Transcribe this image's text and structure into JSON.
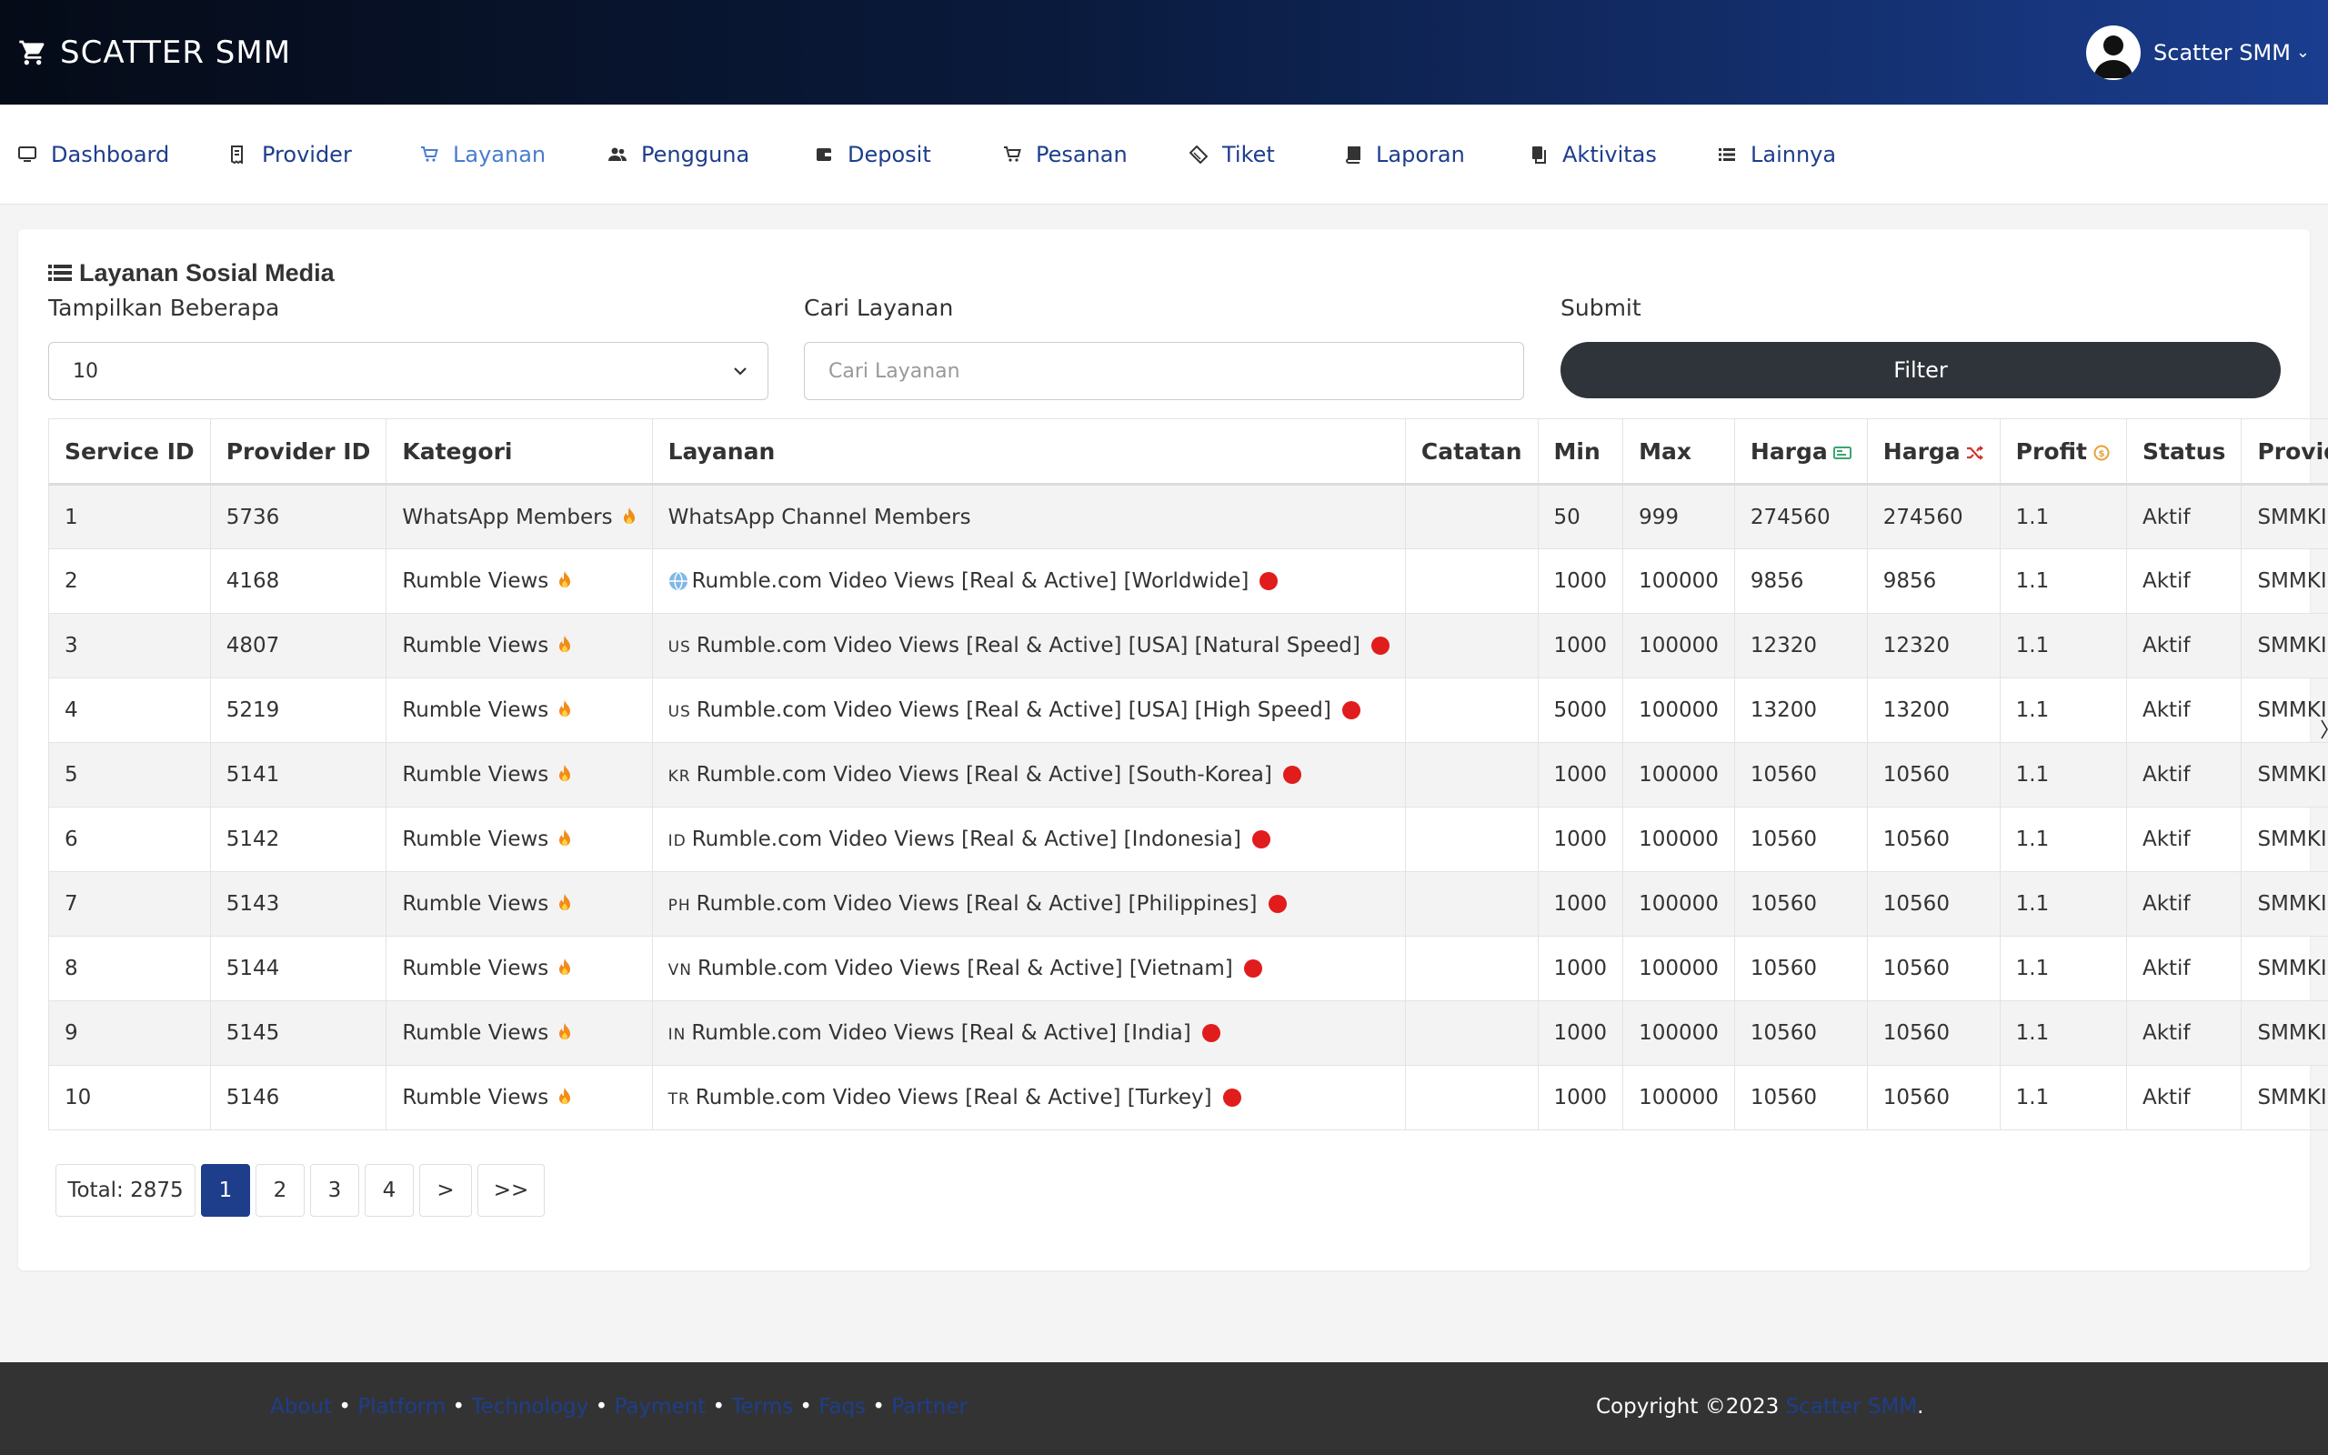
{
  "header": {
    "brand": "SCATTER SMM",
    "user_name": "Scatter SMM",
    "gradient_colors": [
      "#050b17",
      "#1a3d8f"
    ]
  },
  "nav": {
    "items": [
      {
        "label": "Dashboard",
        "icon": "monitor-icon"
      },
      {
        "label": "Provider",
        "icon": "receipt-icon"
      },
      {
        "label": "Layanan",
        "icon": "cart-icon",
        "active": true
      },
      {
        "label": "Pengguna",
        "icon": "users-icon"
      },
      {
        "label": "Deposit",
        "icon": "wallet-icon"
      },
      {
        "label": "Pesanan",
        "icon": "cart-icon"
      },
      {
        "label": "Tiket",
        "icon": "ticket-icon"
      },
      {
        "label": "Laporan",
        "icon": "book-icon"
      },
      {
        "label": "Aktivitas",
        "icon": "copy-icon"
      },
      {
        "label": "Lainnya",
        "icon": "list-icon"
      }
    ]
  },
  "card": {
    "title": "Layanan Sosial Media",
    "show_label": "Tampilkan Beberapa",
    "show_value": "10",
    "search_label": "Cari Layanan",
    "search_placeholder": "Cari Layanan",
    "submit_label": "Submit",
    "filter_button": "Filter"
  },
  "table": {
    "headers": [
      "Service ID",
      "Provider ID",
      "Kategori",
      "Layanan",
      "Catatan",
      "Min",
      "Max",
      "Harga",
      "Harga",
      "Profit",
      "Status",
      "Provider"
    ],
    "rows": [
      {
        "id": "1",
        "provider_id": "5736",
        "kategori": "WhatsApp Members",
        "flag": "",
        "layanan": "WhatsApp Channel Members",
        "dot": false,
        "catatan": "",
        "min": "50",
        "max": "999",
        "harga1": "274560",
        "harga2": "274560",
        "profit": "1.1",
        "status": "Aktif",
        "provider": "SMMKINGS"
      },
      {
        "id": "2",
        "provider_id": "4168",
        "kategori": "Rumble Views",
        "flag": "globe",
        "layanan": "Rumble.com Video Views [Real & Active] [Worldwide]",
        "dot": true,
        "catatan": "",
        "min": "1000",
        "max": "100000",
        "harga1": "9856",
        "harga2": "9856",
        "profit": "1.1",
        "status": "Aktif",
        "provider": "SMMKINGS"
      },
      {
        "id": "3",
        "provider_id": "4807",
        "kategori": "Rumble Views",
        "flag": "US",
        "layanan": "Rumble.com Video Views [Real & Active] [USA] [Natural Speed]",
        "dot": true,
        "catatan": "",
        "min": "1000",
        "max": "100000",
        "harga1": "12320",
        "harga2": "12320",
        "profit": "1.1",
        "status": "Aktif",
        "provider": "SMMKINGS"
      },
      {
        "id": "4",
        "provider_id": "5219",
        "kategori": "Rumble Views",
        "flag": "US",
        "layanan": "Rumble.com Video Views [Real & Active] [USA] [High Speed]",
        "dot": true,
        "catatan": "",
        "min": "5000",
        "max": "100000",
        "harga1": "13200",
        "harga2": "13200",
        "profit": "1.1",
        "status": "Aktif",
        "provider": "SMMKINGS"
      },
      {
        "id": "5",
        "provider_id": "5141",
        "kategori": "Rumble Views",
        "flag": "KR",
        "layanan": "Rumble.com Video Views [Real & Active] [South-Korea]",
        "dot": true,
        "catatan": "",
        "min": "1000",
        "max": "100000",
        "harga1": "10560",
        "harga2": "10560",
        "profit": "1.1",
        "status": "Aktif",
        "provider": "SMMKINGS"
      },
      {
        "id": "6",
        "provider_id": "5142",
        "kategori": "Rumble Views",
        "flag": "ID",
        "layanan": "Rumble.com Video Views [Real & Active] [Indonesia]",
        "dot": true,
        "catatan": "",
        "min": "1000",
        "max": "100000",
        "harga1": "10560",
        "harga2": "10560",
        "profit": "1.1",
        "status": "Aktif",
        "provider": "SMMKINGS"
      },
      {
        "id": "7",
        "provider_id": "5143",
        "kategori": "Rumble Views",
        "flag": "PH",
        "layanan": "Rumble.com Video Views [Real & Active] [Philippines]",
        "dot": true,
        "catatan": "",
        "min": "1000",
        "max": "100000",
        "harga1": "10560",
        "harga2": "10560",
        "profit": "1.1",
        "status": "Aktif",
        "provider": "SMMKINGS"
      },
      {
        "id": "8",
        "provider_id": "5144",
        "kategori": "Rumble Views",
        "flag": "VN",
        "layanan": "Rumble.com Video Views [Real & Active] [Vietnam]",
        "dot": true,
        "catatan": "",
        "min": "1000",
        "max": "100000",
        "harga1": "10560",
        "harga2": "10560",
        "profit": "1.1",
        "status": "Aktif",
        "provider": "SMMKINGS"
      },
      {
        "id": "9",
        "provider_id": "5145",
        "kategori": "Rumble Views",
        "flag": "IN",
        "layanan": "Rumble.com Video Views [Real & Active] [India]",
        "dot": true,
        "catatan": "",
        "min": "1000",
        "max": "100000",
        "harga1": "10560",
        "harga2": "10560",
        "profit": "1.1",
        "status": "Aktif",
        "provider": "SMMKINGS"
      },
      {
        "id": "10",
        "provider_id": "5146",
        "kategori": "Rumble Views",
        "flag": "TR",
        "layanan": "Rumble.com Video Views [Real & Active] [Turkey]",
        "dot": true,
        "catatan": "",
        "min": "1000",
        "max": "100000",
        "harga1": "10560",
        "harga2": "10560",
        "profit": "1.1",
        "status": "Aktif",
        "provider": "SMMKINGS"
      }
    ]
  },
  "pagination": {
    "total": "Total: 2875",
    "pages": [
      "1",
      "2",
      "3",
      "4"
    ],
    "active_page": "1",
    "next": ">",
    "last": ">>"
  },
  "footer": {
    "links": [
      "About",
      "Platform",
      "Technology",
      "Payment",
      "Terms",
      "Faqs",
      "Partner"
    ],
    "copyright_prefix": "Copyright ©2023 ",
    "copyright_link": "Scatter SMM",
    "copyright_suffix": "."
  },
  "colors": {
    "link": "#1e3e8c",
    "active_nav": "#4a7ccf",
    "status_dot": "#e01c1c",
    "filter_button": "#2f343a",
    "footer_bg": "#333333"
  }
}
